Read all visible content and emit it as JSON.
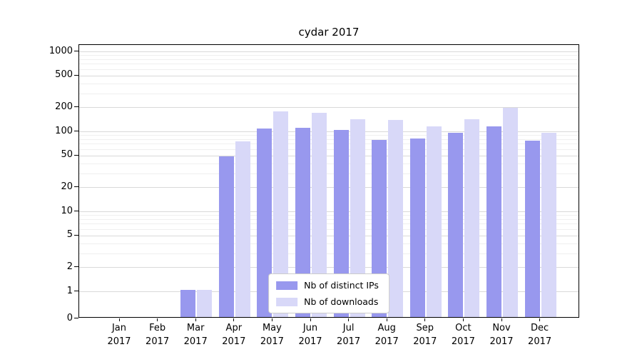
{
  "chart_data": {
    "type": "bar",
    "title": "cydar 2017",
    "yscale": "symlog",
    "grid": true,
    "legend_position": "lower center",
    "ylim": [
      0,
      1200
    ],
    "y_ticks": [
      0,
      1,
      2,
      5,
      10,
      20,
      50,
      100,
      200,
      500,
      1000
    ],
    "categories": [
      "Jan\n2017",
      "Feb\n2017",
      "Mar\n2017",
      "Apr\n2017",
      "May\n2017",
      "Jun\n2017",
      "Jul\n2017",
      "Aug\n2017",
      "Sep\n2017",
      "Oct\n2017",
      "Nov\n2017",
      "Dec\n2017"
    ],
    "series": [
      {
        "name": "Nb of distinct IPs",
        "color": "#9898ee",
        "values": [
          0,
          0,
          1,
          47,
          105,
          107,
          100,
          75,
          78,
          92,
          110,
          74
        ]
      },
      {
        "name": "Nb of downloads",
        "color": "#d8d8f8",
        "values": [
          0,
          0,
          1,
          72,
          170,
          163,
          135,
          133,
          110,
          135,
          188,
          93
        ]
      }
    ]
  }
}
